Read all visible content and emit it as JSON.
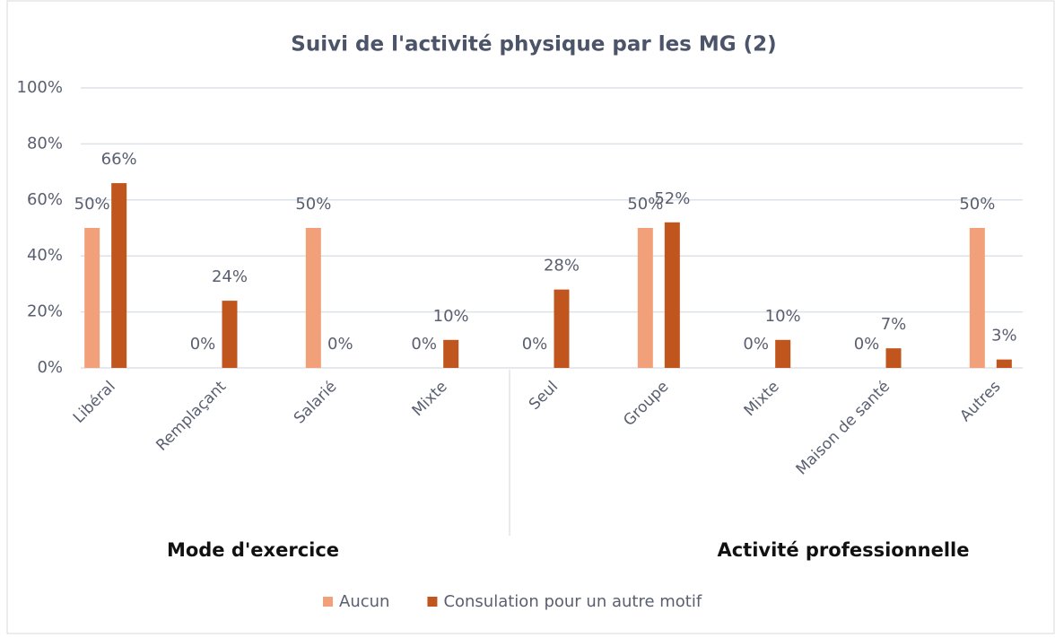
{
  "chart_data": {
    "type": "bar",
    "title": "Suivi de l'activité physique par les MG (2)",
    "categories": [
      "Libéral",
      "Remplaçant",
      "Salarié",
      "Mixte",
      "Seul",
      "Groupe",
      "Mixte",
      "Maison de santé",
      "Autres"
    ],
    "group_labels": [
      "Mode d'exercice",
      "Activité professionnelle"
    ],
    "series": [
      {
        "name": "Aucun",
        "color": "#f2a07a",
        "values": [
          50,
          0,
          50,
          0,
          0,
          50,
          0,
          0,
          50
        ],
        "value_labels": [
          "50%",
          "0%",
          "50%",
          "0%",
          "0%",
          "50%",
          "0%",
          "0%",
          "50%"
        ]
      },
      {
        "name": "Consulation pour un autre motif",
        "color": "#c0561e",
        "values": [
          66,
          24,
          0,
          10,
          28,
          52,
          10,
          7,
          3
        ],
        "value_labels": [
          "66%",
          "24%",
          "0%",
          "10%",
          "28%",
          "52%",
          "10%",
          "7%",
          "3%"
        ]
      }
    ],
    "ylim": [
      0,
      100
    ],
    "yticks": [
      {
        "value": 0,
        "label": "0%"
      },
      {
        "value": 20,
        "label": "20%"
      },
      {
        "value": 40,
        "label": "40%"
      },
      {
        "value": 60,
        "label": "60%"
      },
      {
        "value": 80,
        "label": "80%"
      },
      {
        "value": 100,
        "label": "100%"
      }
    ],
    "grid": true,
    "legend": "bottom"
  }
}
